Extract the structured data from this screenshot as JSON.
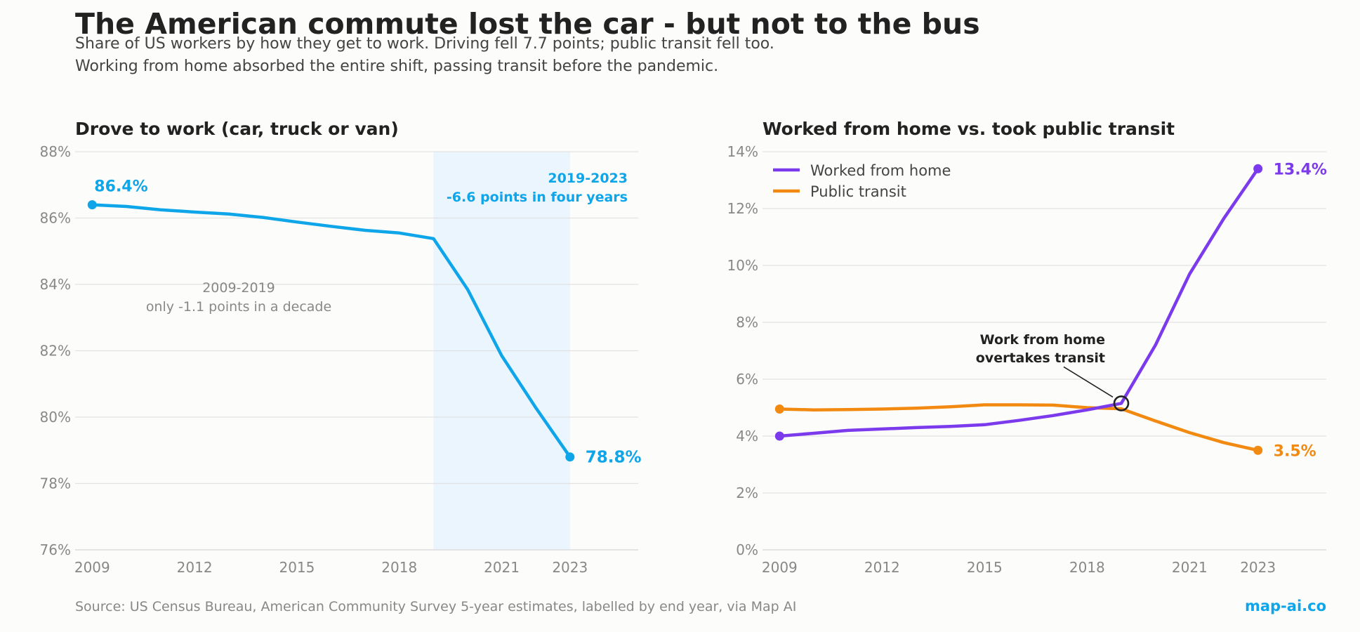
{
  "header": {
    "title": "The American commute lost the car - but not to the bus",
    "subtitle_line1": "Share of US workers by how they get to work. Driving fell 7.7 points; public transit fell too.",
    "subtitle_line2": "Working from home absorbed the entire shift, passing transit before the pandemic."
  },
  "footer": {
    "source": "Source: US Census Bureau, American Community Survey 5-year estimates, labelled by end year, via Map AI",
    "brand": "map-ai.co"
  },
  "colors": {
    "drove": "#0ea5e9",
    "wfh": "#7c3aed",
    "transit": "#f28a12",
    "highlight_band": "#eaf5fd"
  },
  "chart_data": [
    {
      "type": "line",
      "title": "Drove to work (car, truck or van)",
      "xlabel": "",
      "ylabel": "",
      "x": [
        2009,
        2010,
        2011,
        2012,
        2013,
        2014,
        2015,
        2016,
        2017,
        2018,
        2019,
        2020,
        2021,
        2022,
        2023
      ],
      "series": [
        {
          "values": [
            86.4,
            86.35,
            86.25,
            86.18,
            86.12,
            86.02,
            85.88,
            85.75,
            85.63,
            85.55,
            85.38,
            83.85,
            81.85,
            80.28,
            78.8
          ]
        }
      ],
      "xlim": [
        2008.5,
        2025
      ],
      "ylim": [
        76,
        88
      ],
      "x_ticks": [
        2009,
        2012,
        2015,
        2018,
        2021,
        2023
      ],
      "y_ticks": [
        76,
        78,
        80,
        82,
        84,
        86,
        88
      ],
      "y_tick_suffix": "%",
      "grid": true,
      "highlight_range": [
        2019,
        2023
      ],
      "start_label": "86.4%",
      "end_label": "78.8%",
      "annotations": [
        {
          "lines": [
            "2009-2019",
            "only -1.1 points in a decade"
          ]
        },
        {
          "lines": [
            "2019-2023",
            "-6.6 points in four years"
          ]
        }
      ]
    },
    {
      "type": "line",
      "title": "Worked from home vs. took public transit",
      "xlabel": "",
      "ylabel": "",
      "x": [
        2009,
        2010,
        2011,
        2012,
        2013,
        2014,
        2015,
        2016,
        2017,
        2018,
        2019,
        2020,
        2021,
        2022,
        2023
      ],
      "series": [
        {
          "name": "Worked from home",
          "values": [
            4.0,
            4.1,
            4.2,
            4.25,
            4.3,
            4.34,
            4.4,
            4.55,
            4.72,
            4.92,
            5.15,
            7.2,
            9.7,
            11.65,
            13.4
          ],
          "end_label": "13.4%"
        },
        {
          "name": "Public transit",
          "values": [
            4.95,
            4.92,
            4.93,
            4.95,
            4.98,
            5.03,
            5.1,
            5.1,
            5.09,
            5.0,
            4.96,
            4.53,
            4.12,
            3.77,
            3.5
          ],
          "end_label": "3.5%"
        }
      ],
      "xlim": [
        2008.5,
        2025
      ],
      "ylim": [
        0,
        14
      ],
      "x_ticks": [
        2009,
        2012,
        2015,
        2018,
        2021,
        2023
      ],
      "y_ticks": [
        0,
        2,
        4,
        6,
        8,
        10,
        12,
        14
      ],
      "y_tick_suffix": "%",
      "grid": true,
      "legend": "top-left",
      "crossover": {
        "x": 2019,
        "y": 5.15
      },
      "annotations": [
        {
          "lines": [
            "Work from home",
            "overtakes transit"
          ]
        }
      ]
    }
  ]
}
